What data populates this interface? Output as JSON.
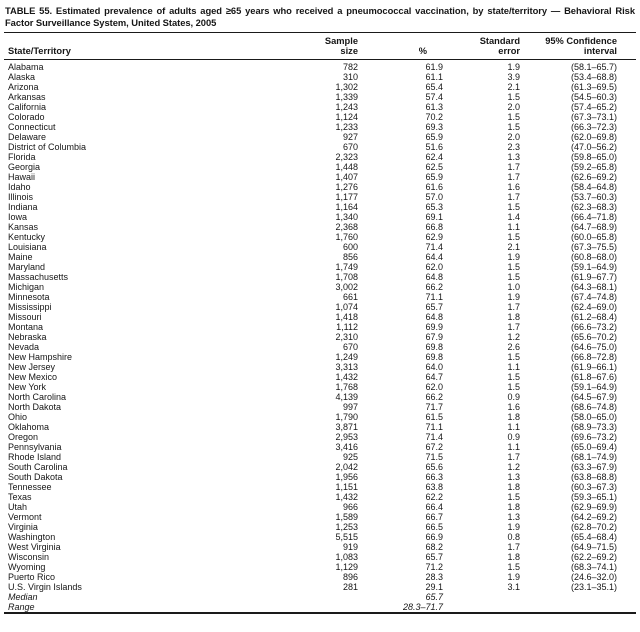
{
  "table": {
    "title": "TABLE 55. Estimated prevalence of adults aged ≥65 years who received a pneumococcal vaccination, by state/territory — Behavioral Risk Factor Surveillance System, United States, 2005",
    "columns": {
      "state": "State/Territory",
      "sample": "Sample\nsize",
      "percent": "%",
      "se": "Standard\nerror",
      "ci": "95% Confidence\ninterval"
    },
    "rows": [
      {
        "state": "Alabama",
        "sample": "782",
        "pct": "61.9",
        "se": "1.9",
        "ci": "(58.1–65.7)"
      },
      {
        "state": "Alaska",
        "sample": "310",
        "pct": "61.1",
        "se": "3.9",
        "ci": "(53.4–68.8)"
      },
      {
        "state": "Arizona",
        "sample": "1,302",
        "pct": "65.4",
        "se": "2.1",
        "ci": "(61.3–69.5)"
      },
      {
        "state": "Arkansas",
        "sample": "1,339",
        "pct": "57.4",
        "se": "1.5",
        "ci": "(54.5–60.3)"
      },
      {
        "state": "California",
        "sample": "1,243",
        "pct": "61.3",
        "se": "2.0",
        "ci": "(57.4–65.2)"
      },
      {
        "state": "Colorado",
        "sample": "1,124",
        "pct": "70.2",
        "se": "1.5",
        "ci": "(67.3–73.1)"
      },
      {
        "state": "Connecticut",
        "sample": "1,233",
        "pct": "69.3",
        "se": "1.5",
        "ci": "(66.3–72.3)"
      },
      {
        "state": "Delaware",
        "sample": "927",
        "pct": "65.9",
        "se": "2.0",
        "ci": "(62.0–69.8)"
      },
      {
        "state": "District of Columbia",
        "sample": "670",
        "pct": "51.6",
        "se": "2.3",
        "ci": "(47.0–56.2)"
      },
      {
        "state": "Florida",
        "sample": "2,323",
        "pct": "62.4",
        "se": "1.3",
        "ci": "(59.8–65.0)"
      },
      {
        "state": "Georgia",
        "sample": "1,448",
        "pct": "62.5",
        "se": "1.7",
        "ci": "(59.2–65.8)"
      },
      {
        "state": "Hawaii",
        "sample": "1,407",
        "pct": "65.9",
        "se": "1.7",
        "ci": "(62.6–69.2)"
      },
      {
        "state": "Idaho",
        "sample": "1,276",
        "pct": "61.6",
        "se": "1.6",
        "ci": "(58.4–64.8)"
      },
      {
        "state": "Illinois",
        "sample": "1,177",
        "pct": "57.0",
        "se": "1.7",
        "ci": "(53.7–60.3)"
      },
      {
        "state": "Indiana",
        "sample": "1,164",
        "pct": "65.3",
        "se": "1.5",
        "ci": "(62.3–68.3)"
      },
      {
        "state": "Iowa",
        "sample": "1,340",
        "pct": "69.1",
        "se": "1.4",
        "ci": "(66.4–71.8)"
      },
      {
        "state": "Kansas",
        "sample": "2,368",
        "pct": "66.8",
        "se": "1.1",
        "ci": "(64.7–68.9)"
      },
      {
        "state": "Kentucky",
        "sample": "1,760",
        "pct": "62.9",
        "se": "1.5",
        "ci": "(60.0–65.8)"
      },
      {
        "state": "Louisiana",
        "sample": "600",
        "pct": "71.4",
        "se": "2.1",
        "ci": "(67.3–75.5)"
      },
      {
        "state": "Maine",
        "sample": "856",
        "pct": "64.4",
        "se": "1.9",
        "ci": "(60.8–68.0)"
      },
      {
        "state": "Maryland",
        "sample": "1,749",
        "pct": "62.0",
        "se": "1.5",
        "ci": "(59.1–64.9)"
      },
      {
        "state": "Massachusetts",
        "sample": "1,708",
        "pct": "64.8",
        "se": "1.5",
        "ci": "(61.9–67.7)"
      },
      {
        "state": "Michigan",
        "sample": "3,002",
        "pct": "66.2",
        "se": "1.0",
        "ci": "(64.3–68.1)"
      },
      {
        "state": "Minnesota",
        "sample": "661",
        "pct": "71.1",
        "se": "1.9",
        "ci": "(67.4–74.8)"
      },
      {
        "state": "Mississippi",
        "sample": "1,074",
        "pct": "65.7",
        "se": "1.7",
        "ci": "(62.4–69.0)"
      },
      {
        "state": "Missouri",
        "sample": "1,418",
        "pct": "64.8",
        "se": "1.8",
        "ci": "(61.2–68.4)"
      },
      {
        "state": "Montana",
        "sample": "1,112",
        "pct": "69.9",
        "se": "1.7",
        "ci": "(66.6–73.2)"
      },
      {
        "state": "Nebraska",
        "sample": "2,310",
        "pct": "67.9",
        "se": "1.2",
        "ci": "(65.6–70.2)"
      },
      {
        "state": "Nevada",
        "sample": "670",
        "pct": "69.8",
        "se": "2.6",
        "ci": "(64.6–75.0)"
      },
      {
        "state": "New Hampshire",
        "sample": "1,249",
        "pct": "69.8",
        "se": "1.5",
        "ci": "(66.8–72.8)"
      },
      {
        "state": "New Jersey",
        "sample": "3,313",
        "pct": "64.0",
        "se": "1.1",
        "ci": "(61.9–66.1)"
      },
      {
        "state": "New Mexico",
        "sample": "1,432",
        "pct": "64.7",
        "se": "1.5",
        "ci": "(61.8–67.6)"
      },
      {
        "state": "New York",
        "sample": "1,768",
        "pct": "62.0",
        "se": "1.5",
        "ci": "(59.1–64.9)"
      },
      {
        "state": "North Carolina",
        "sample": "4,139",
        "pct": "66.2",
        "se": "0.9",
        "ci": "(64.5–67.9)"
      },
      {
        "state": "North Dakota",
        "sample": "997",
        "pct": "71.7",
        "se": "1.6",
        "ci": "(68.6–74.8)"
      },
      {
        "state": "Ohio",
        "sample": "1,790",
        "pct": "61.5",
        "se": "1.8",
        "ci": "(58.0–65.0)"
      },
      {
        "state": "Oklahoma",
        "sample": "3,871",
        "pct": "71.1",
        "se": "1.1",
        "ci": "(68.9–73.3)"
      },
      {
        "state": "Oregon",
        "sample": "2,953",
        "pct": "71.4",
        "se": "0.9",
        "ci": "(69.6–73.2)"
      },
      {
        "state": "Pennsylvania",
        "sample": "3,416",
        "pct": "67.2",
        "se": "1.1",
        "ci": "(65.0–69.4)"
      },
      {
        "state": "Rhode Island",
        "sample": "925",
        "pct": "71.5",
        "se": "1.7",
        "ci": "(68.1–74.9)"
      },
      {
        "state": "South Carolina",
        "sample": "2,042",
        "pct": "65.6",
        "se": "1.2",
        "ci": "(63.3–67.9)"
      },
      {
        "state": "South Dakota",
        "sample": "1,956",
        "pct": "66.3",
        "se": "1.3",
        "ci": "(63.8–68.8)"
      },
      {
        "state": "Tennessee",
        "sample": "1,151",
        "pct": "63.8",
        "se": "1.8",
        "ci": "(60.3–67.3)"
      },
      {
        "state": "Texas",
        "sample": "1,432",
        "pct": "62.2",
        "se": "1.5",
        "ci": "(59.3–65.1)"
      },
      {
        "state": "Utah",
        "sample": "966",
        "pct": "66.4",
        "se": "1.8",
        "ci": "(62.9–69.9)"
      },
      {
        "state": "Vermont",
        "sample": "1,589",
        "pct": "66.7",
        "se": "1.3",
        "ci": "(64.2–69.2)"
      },
      {
        "state": "Virginia",
        "sample": "1,253",
        "pct": "66.5",
        "se": "1.9",
        "ci": "(62.8–70.2)"
      },
      {
        "state": "Washington",
        "sample": "5,515",
        "pct": "66.9",
        "se": "0.8",
        "ci": "(65.4–68.4)"
      },
      {
        "state": "West Virginia",
        "sample": "919",
        "pct": "68.2",
        "se": "1.7",
        "ci": "(64.9–71.5)"
      },
      {
        "state": "Wisconsin",
        "sample": "1,083",
        "pct": "65.7",
        "se": "1.8",
        "ci": "(62.2–69.2)"
      },
      {
        "state": "Wyoming",
        "sample": "1,129",
        "pct": "71.2",
        "se": "1.5",
        "ci": "(68.3–74.1)"
      },
      {
        "state": "Puerto Rico",
        "sample": "896",
        "pct": "28.3",
        "se": "1.9",
        "ci": "(24.6–32.0)"
      },
      {
        "state": "U.S. Virgin Islands",
        "sample": "281",
        "pct": "29.1",
        "se": "3.1",
        "ci": "(23.1–35.1)"
      }
    ],
    "summary": [
      {
        "state": "Median",
        "pct": "65.7"
      },
      {
        "state": "Range",
        "pct": "28.3–71.7"
      }
    ]
  }
}
